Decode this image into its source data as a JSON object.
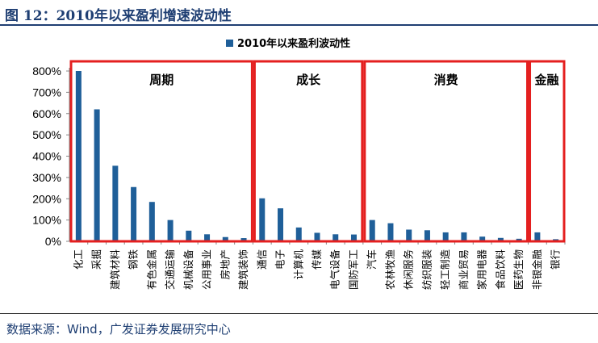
{
  "header": {
    "title": "图 12：2010年以来盈利增速波动性"
  },
  "footer": {
    "source": "数据来源：Wind，广发证券发展研究中心"
  },
  "colors": {
    "bar": "#1f5f99",
    "group_box": "#e41f1f",
    "title": "#1f3f73"
  },
  "chart_data": {
    "type": "bar",
    "legend": {
      "label": "2010年以来盈利波动性",
      "position": "top-center"
    },
    "ylim": [
      0,
      800
    ],
    "yticks": [
      0,
      100,
      200,
      300,
      400,
      500,
      600,
      700,
      800
    ],
    "ytick_labels": [
      "0%",
      "100%",
      "200%",
      "300%",
      "400%",
      "500%",
      "600%",
      "700%",
      "800%"
    ],
    "categories": [
      "化工",
      "采掘",
      "建筑材料",
      "钢铁",
      "有色金属",
      "交通运输",
      "机械设备",
      "公用事业",
      "房地产",
      "建筑装饰",
      "通信",
      "电子",
      "计算机",
      "传媒",
      "电气设备",
      "国防军工",
      "汽车",
      "农林牧渔",
      "休闲服务",
      "纺织服装",
      "轻工制造",
      "商业贸易",
      "家用电器",
      "食品饮料",
      "医药生物",
      "非银金融",
      "银行"
    ],
    "series": [
      {
        "values": [
          800,
          620,
          355,
          255,
          185,
          100,
          50,
          33,
          20,
          15,
          202,
          155,
          65,
          40,
          33,
          32,
          100,
          85,
          55,
          52,
          42,
          42,
          22,
          16,
          12,
          42,
          10
        ]
      }
    ],
    "groups": [
      {
        "label": "周期",
        "start": 0,
        "end": 9
      },
      {
        "label": "成长",
        "start": 10,
        "end": 15
      },
      {
        "label": "消费",
        "start": 16,
        "end": 24
      },
      {
        "label": "金融",
        "start": 25,
        "end": 26
      }
    ]
  }
}
